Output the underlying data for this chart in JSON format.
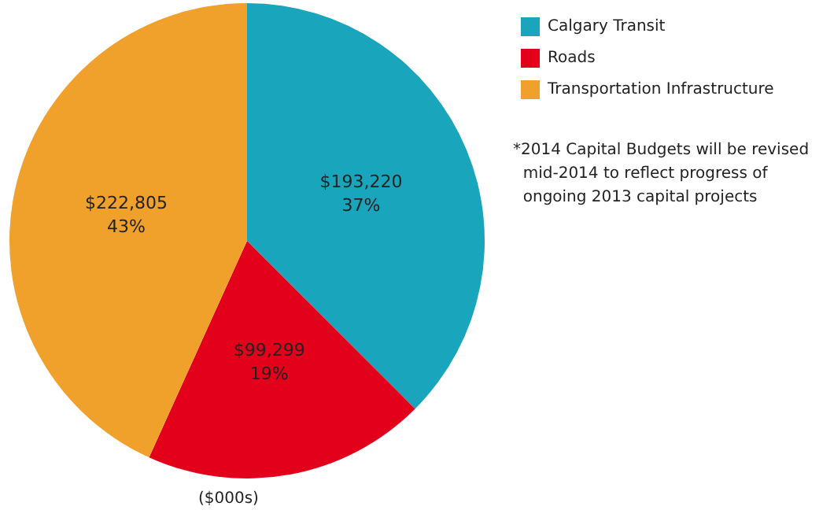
{
  "chart_data": {
    "type": "pie",
    "categories": [
      "Calgary Transit",
      "Roads",
      "Transportation Infrastructure"
    ],
    "values": [
      193220,
      99299,
      222805
    ],
    "colors": [
      "#19a5bc",
      "#e2001b",
      "#f0a12b"
    ],
    "value_labels": [
      "$193,220\n37%",
      "$99,299\n19%",
      "$222,805\n43%"
    ],
    "legend": "top right",
    "annotations": [
      "*2014 Capital Budgets will be revised\n  mid-2014 to reflect progress of\n  ongoing 2013 capital projects",
      "($000s)"
    ]
  }
}
